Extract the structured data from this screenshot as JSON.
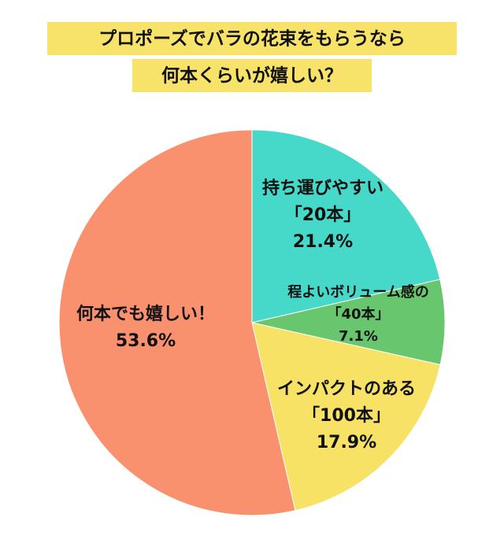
{
  "chart_data": {
    "type": "pie",
    "title": [
      "プロポーズでバラの花束をもらうなら",
      "何本くらいが嬉しい？"
    ],
    "categories": [
      [
        "持ち運びやすい",
        "「20本」"
      ],
      [
        "程よいボリューム感の",
        "「40本」"
      ],
      [
        "インパクトのある",
        "「100本」"
      ],
      [
        "何本でも嬉しい！"
      ]
    ],
    "values": [
      21.4,
      7.1,
      17.9,
      53.6
    ],
    "value_labels": [
      "21.4%",
      "7.1%",
      "17.9%",
      "53.6%"
    ],
    "colors": [
      "#46d9c9",
      "#68c66e",
      "#f8e266",
      "#f9916f"
    ]
  }
}
